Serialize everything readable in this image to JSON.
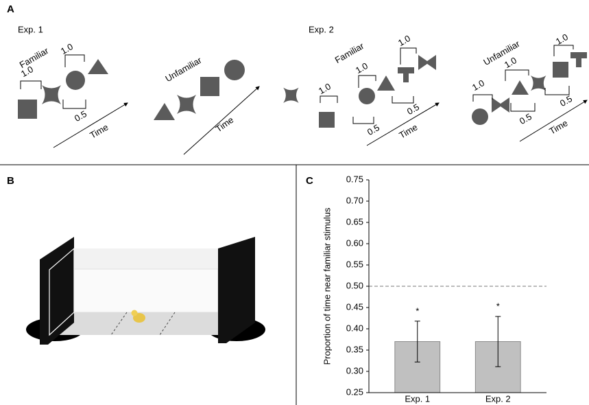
{
  "panel_a": {
    "label": "A",
    "exp1": {
      "title": "Exp. 1",
      "familiar_label": "Familiar",
      "familiar_intervals": [
        "1.0",
        "1.0",
        "0.5"
      ],
      "unfamiliar_label": "Unfamiliar",
      "time_labels": [
        "Time",
        "Time"
      ]
    },
    "exp2": {
      "title": "Exp. 2",
      "familiar_label": "Familiar",
      "familiar_intervals": [
        "1.0",
        "1.0",
        "1.0",
        "0.5",
        "0.5"
      ],
      "unfamiliar_label": "Unfamiliar",
      "unfamiliar_intervals": [
        "1.0",
        "1.0",
        "1.0",
        "0.5",
        "0.5"
      ],
      "time_labels": [
        "Time",
        "Time"
      ]
    }
  },
  "panel_b": {
    "label": "B"
  },
  "panel_c": {
    "label": "C"
  },
  "chart_data": {
    "type": "bar",
    "y_label": "Proportion of time near familiar stimulus",
    "categories": [
      "Exp. 1",
      "Exp. 2"
    ],
    "values": [
      0.37,
      0.37
    ],
    "errors": [
      0.048,
      0.059
    ],
    "annotations": [
      "*",
      "*"
    ],
    "color": "#c0c0c0",
    "reference_line": 0.5,
    "ylim": [
      0.25,
      0.75
    ],
    "yticks": [
      0.25,
      {
        "value": 0.3,
        "label": "0.30"
      },
      0.35,
      {
        "value": 0.4,
        "label": "0.40"
      },
      0.45,
      {
        "value": 0.5,
        "label": "0.50"
      },
      0.55,
      {
        "value": 0.6,
        "label": "0.60"
      },
      0.65,
      {
        "value": 0.7,
        "label": "0.70"
      },
      0.75
    ]
  }
}
